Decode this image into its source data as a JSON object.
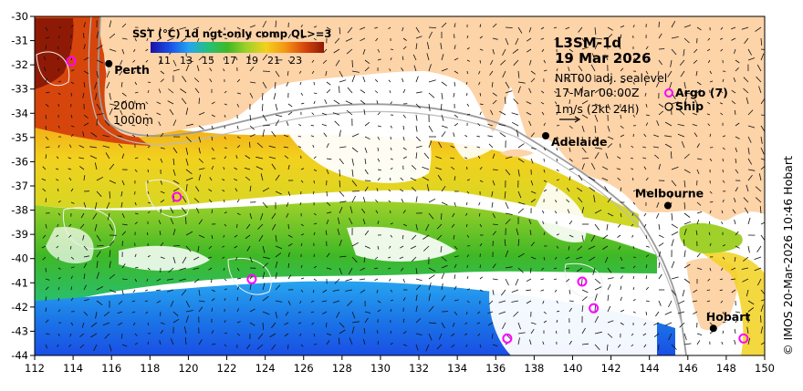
{
  "map": {
    "product": "L3SM-1d",
    "date": "19 Mar 2026",
    "colorbar_title": "SST (°C) 1d ngt-only comp QL>=3",
    "colorbar_ticks": [
      "11",
      "13",
      "15",
      "17",
      "19",
      "21",
      "23"
    ],
    "current_source": "NRT00 adj. sealevel",
    "current_time": "17-Mar 00:00Z",
    "current_scale": "1m/s (2kt 24h)",
    "legend_argo": "Argo (7)",
    "legend_ship": "Ship",
    "contour_label_200": "200m",
    "contour_label_1000": "1000m",
    "credit": "© IMOS 20-Mar-2026 10:46 Hobart",
    "x_ticks": [
      "112",
      "114",
      "116",
      "118",
      "120",
      "122",
      "124",
      "126",
      "128",
      "130",
      "132",
      "134",
      "136",
      "138",
      "140",
      "142",
      "144",
      "146",
      "148",
      "150"
    ],
    "y_ticks": [
      "-30",
      "-31",
      "-32",
      "-33",
      "-34",
      "-35",
      "-36",
      "-37",
      "-38",
      "-39",
      "-40",
      "-41",
      "-42",
      "-43",
      "-44"
    ],
    "cities": [
      {
        "name": "Perth",
        "lon": 115.86,
        "lat": -31.95
      },
      {
        "name": "Adelaide",
        "lon": 138.6,
        "lat": -34.93
      },
      {
        "name": "Melbourne",
        "lon": 144.96,
        "lat": -37.81
      },
      {
        "name": "Hobart",
        "lon": 147.33,
        "lat": -42.88
      }
    ],
    "argo_floats": [
      {
        "lon": 113.9,
        "lat": -31.85
      },
      {
        "lon": 119.4,
        "lat": -37.45
      },
      {
        "lon": 123.3,
        "lat": -40.85
      },
      {
        "lon": 136.6,
        "lat": -43.3
      },
      {
        "lon": 140.5,
        "lat": -40.95
      },
      {
        "lon": 141.1,
        "lat": -42.05
      },
      {
        "lon": 148.9,
        "lat": -43.3
      }
    ],
    "colors": {
      "land": "#fdd3a8",
      "cloud": "#ffffff",
      "argo": "#ff00ff",
      "ship": "#000000",
      "sst_scale": [
        "#1d12a8",
        "#1a4fe6",
        "#27a4f0",
        "#24c07a",
        "#3fb826",
        "#9fd12a",
        "#f2d11e",
        "#f49514",
        "#d6460c",
        "#8e1a06"
      ]
    }
  }
}
